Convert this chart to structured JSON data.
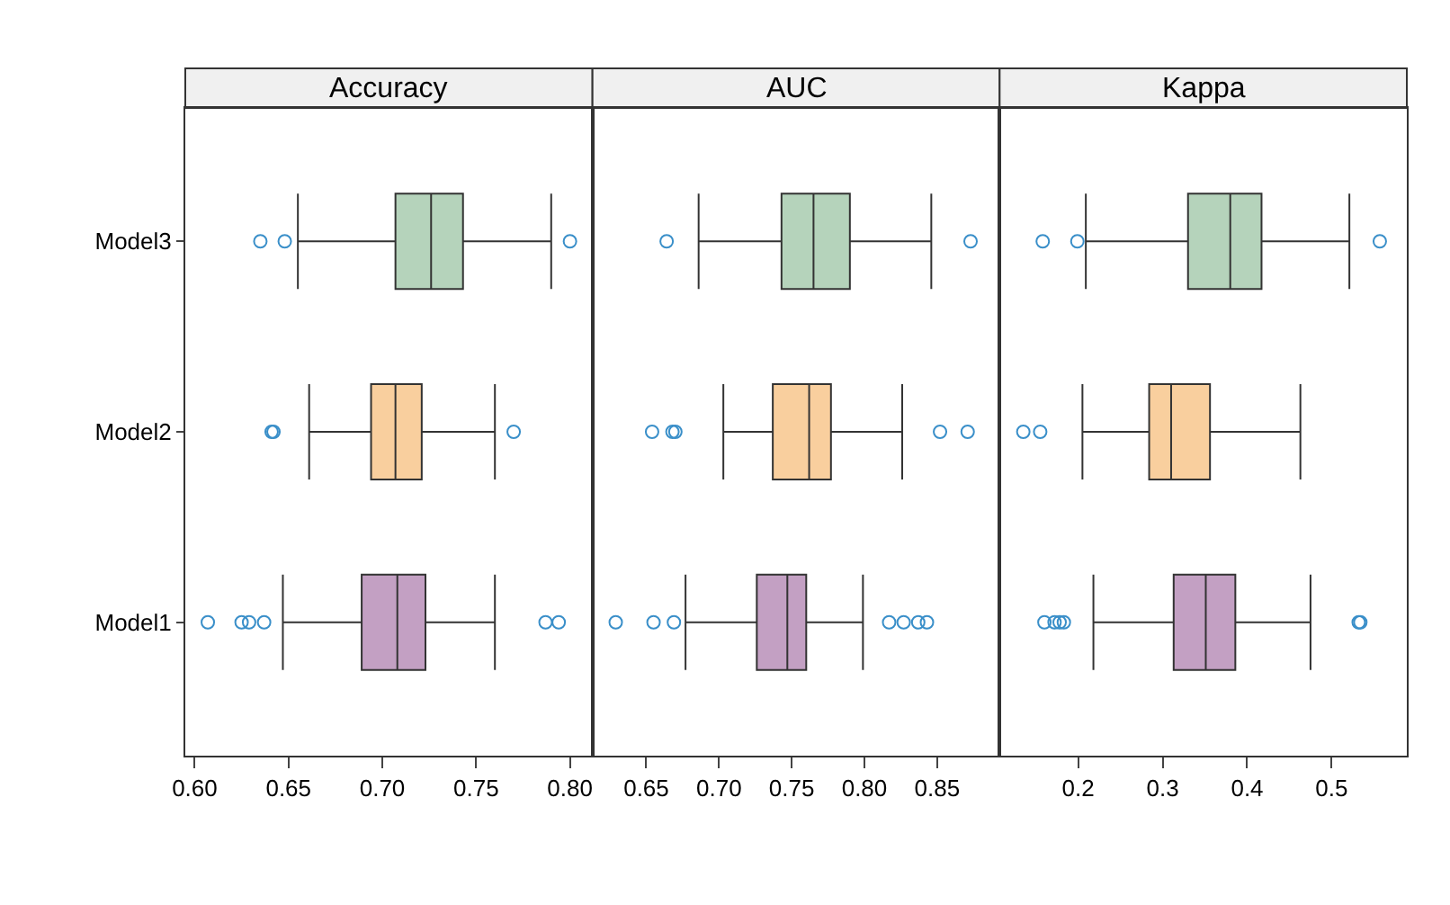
{
  "chart_data": [
    {
      "type": "box",
      "title": "Accuracy",
      "orientation": "horizontal",
      "categories": [
        "Model3",
        "Model2",
        "Model1"
      ],
      "colors": [
        "#b5d3bb",
        "#f9cf9e",
        "#c3a0c3"
      ],
      "xlim": [
        0.595,
        0.812
      ],
      "xticks": [
        {
          "value": 0.6,
          "label": "0.60"
        },
        0.65,
        {
          "value": 0.7,
          "label": "0.70"
        },
        0.75,
        {
          "value": 0.8,
          "label": "0.80"
        }
      ],
      "marker": "circle",
      "boxes": [
        {
          "low": 0.655,
          "q1": 0.707,
          "median": 0.726,
          "q3": 0.743,
          "high": 0.79,
          "outliers": [
            0.635,
            0.648,
            0.8
          ]
        },
        {
          "low": 0.661,
          "q1": 0.694,
          "median": 0.707,
          "q3": 0.721,
          "high": 0.76,
          "outliers": [
            0.641,
            0.642,
            0.77
          ]
        },
        {
          "low": 0.647,
          "q1": 0.689,
          "median": 0.708,
          "q3": 0.723,
          "high": 0.76,
          "outliers": [
            0.607,
            0.625,
            0.629,
            0.637,
            0.787,
            0.794
          ]
        }
      ]
    },
    {
      "type": "box",
      "title": "AUC",
      "orientation": "horizontal",
      "categories": [
        "Model3",
        "Model2",
        "Model1"
      ],
      "colors": [
        "#b5d3bb",
        "#f9cf9e",
        "#c3a0c3"
      ],
      "xlim": [
        0.613,
        0.893
      ],
      "xticks": [
        0.65,
        {
          "value": 0.7,
          "label": "0.70"
        },
        0.75,
        {
          "value": 0.8,
          "label": "0.80"
        },
        0.85
      ],
      "marker": "circle",
      "tick_labels": "x",
      "boxes": [
        {
          "low": 0.686,
          "q1": 0.743,
          "median": 0.765,
          "q3": 0.79,
          "high": 0.846,
          "outliers": [
            0.664,
            0.873
          ]
        },
        {
          "low": 0.703,
          "q1": 0.737,
          "median": 0.762,
          "q3": 0.777,
          "high": 0.826,
          "outliers": [
            0.654,
            0.668,
            0.67,
            0.852,
            0.871
          ]
        },
        {
          "low": 0.677,
          "q1": 0.726,
          "median": 0.747,
          "q3": 0.76,
          "high": 0.799,
          "outliers": [
            0.629,
            0.655,
            0.669,
            0.817,
            0.827,
            0.837,
            0.843
          ]
        }
      ]
    },
    {
      "type": "box",
      "title": "Kappa",
      "orientation": "horizontal",
      "categories": [
        "Model3",
        "Model2",
        "Model1"
      ],
      "colors": [
        "#b5d3bb",
        "#f9cf9e",
        "#c3a0c3"
      ],
      "xlim": [
        0.107,
        0.589
      ],
      "xticks": [
        0.2,
        0.3,
        0.4,
        0.5
      ],
      "marker": "circle",
      "tick_labels": "x",
      "boxes": [
        {
          "low": 0.209,
          "q1": 0.33,
          "median": 0.38,
          "q3": 0.417,
          "high": 0.521,
          "outliers": [
            0.158,
            0.199,
            0.557
          ]
        },
        {
          "low": 0.205,
          "q1": 0.284,
          "median": 0.31,
          "q3": 0.356,
          "high": 0.463,
          "outliers": [
            0.135,
            0.155
          ]
        },
        {
          "low": 0.218,
          "q1": 0.313,
          "median": 0.351,
          "q3": 0.386,
          "high": 0.475,
          "outliers": [
            0.16,
            0.172,
            0.178,
            0.183,
            0.532,
            0.534
          ]
        }
      ]
    }
  ]
}
